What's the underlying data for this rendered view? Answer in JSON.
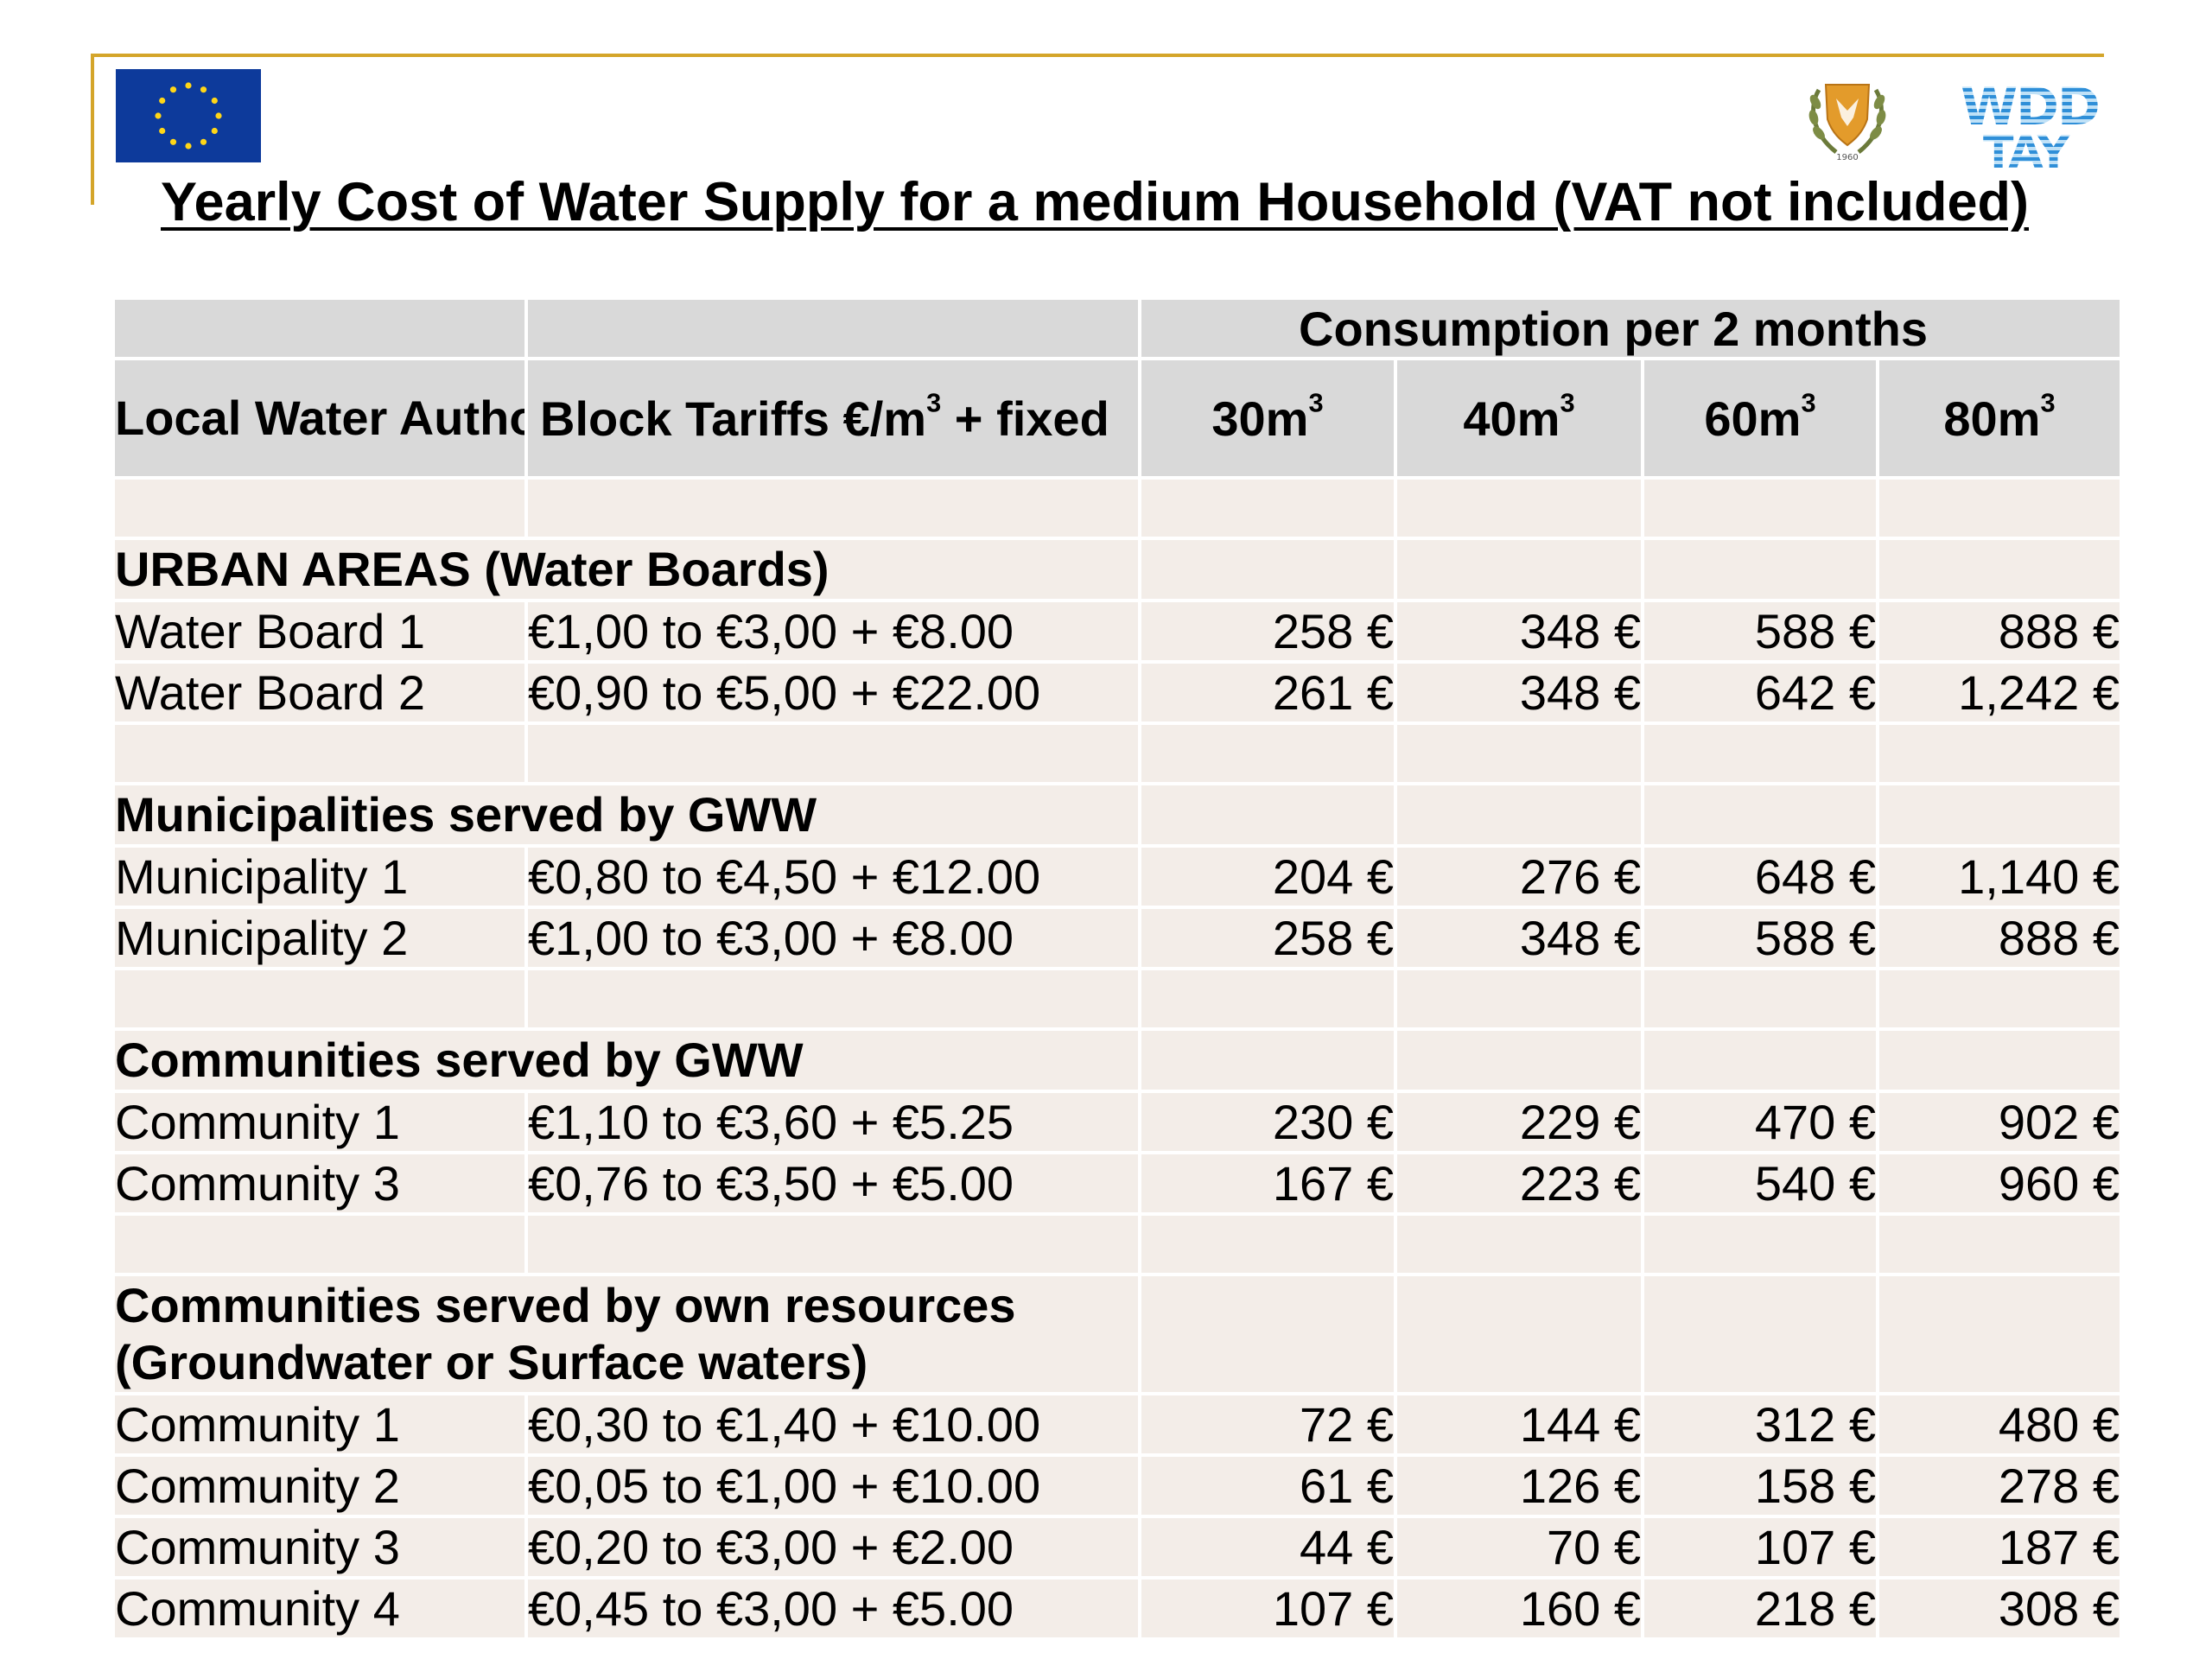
{
  "title": "Yearly Cost of Water Supply for a medium Household (VAT not included)",
  "logos": {
    "eu_flag": "eu-flag-icon",
    "cyprus_emblem": "cyprus-emblem-icon",
    "wdd_logo_text": "WDD TAY",
    "brand_color": "#0d3a9b",
    "frame_color": "#d4a52a"
  },
  "table": {
    "header": {
      "consumption_label": "Consumption per 2 months",
      "authority_label": "Local Water Authority",
      "tariff_label": "Block Tariffs €/m",
      "tariff_sup": "3",
      "tariff_suffix": " + fixed",
      "volumes": [
        {
          "value": "30m",
          "sup": "3"
        },
        {
          "value": "40m",
          "sup": "3"
        },
        {
          "value": "60m",
          "sup": "3"
        },
        {
          "value": "80m",
          "sup": "3"
        }
      ]
    },
    "groups": [
      {
        "label": "URBAN AREAS (Water Boards)",
        "rows": [
          {
            "name": "Water Board 1",
            "tariff": "€1,00 to €3,00 + €8.00",
            "c30": "258 €",
            "c40": "348 €",
            "c60": "588 €",
            "c80": "888 €"
          },
          {
            "name": "Water Board 2",
            "tariff": "€0,90 to €5,00 + €22.00",
            "c30": "261 €",
            "c40": "348 €",
            "c60": "642 €",
            "c80": "1,242 €"
          }
        ]
      },
      {
        "label": "Municipalities served by GWW",
        "rows": [
          {
            "name": "Municipality 1",
            "tariff": "€0,80 to €4,50 + €12.00",
            "c30": "204 €",
            "c40": "276 €",
            "c60": "648 €",
            "c80": "1,140 €"
          },
          {
            "name": "Municipality 2",
            "tariff": "€1,00 to €3,00 + €8.00",
            "c30": "258 €",
            "c40": "348 €",
            "c60": "588 €",
            "c80": "888 €"
          }
        ]
      },
      {
        "label": "Communities served by GWW",
        "rows": [
          {
            "name": "Community 1",
            "tariff": "€1,10 to €3,60 + €5.25",
            "c30": "230 €",
            "c40": "229 €",
            "c60": "470 €",
            "c80": "902 €"
          },
          {
            "name": "Community 3",
            "tariff": "€0,76 to €3,50 + €5.00",
            "c30": "167 €",
            "c40": "223 €",
            "c60": "540 €",
            "c80": "960 €"
          }
        ]
      },
      {
        "label": "Communities served by own resources",
        "label_line2": "(Groundwater or Surface waters)",
        "rows": [
          {
            "name": "Community 1",
            "tariff": "€0,30 to €1,40 + €10.00",
            "c30": "72 €",
            "c40": "144 €",
            "c60": "312 €",
            "c80": "480 €"
          },
          {
            "name": "Community 2",
            "tariff": "€0,05 to €1,00 + €10.00",
            "c30": "61 €",
            "c40": "126 €",
            "c60": "158 €",
            "c80": "278 €"
          },
          {
            "name": "Community 3",
            "tariff": "€0,20 to €3,00 + €2.00",
            "c30": "44 €",
            "c40": "70 €",
            "c60": "107 €",
            "c80": "187 €"
          },
          {
            "name": "Community 4",
            "tariff": "€0,45 to €3,00 + €5.00",
            "c30": "107 €",
            "c40": "160 €",
            "c60": "218 €",
            "c80": "308 €"
          }
        ]
      }
    ]
  }
}
